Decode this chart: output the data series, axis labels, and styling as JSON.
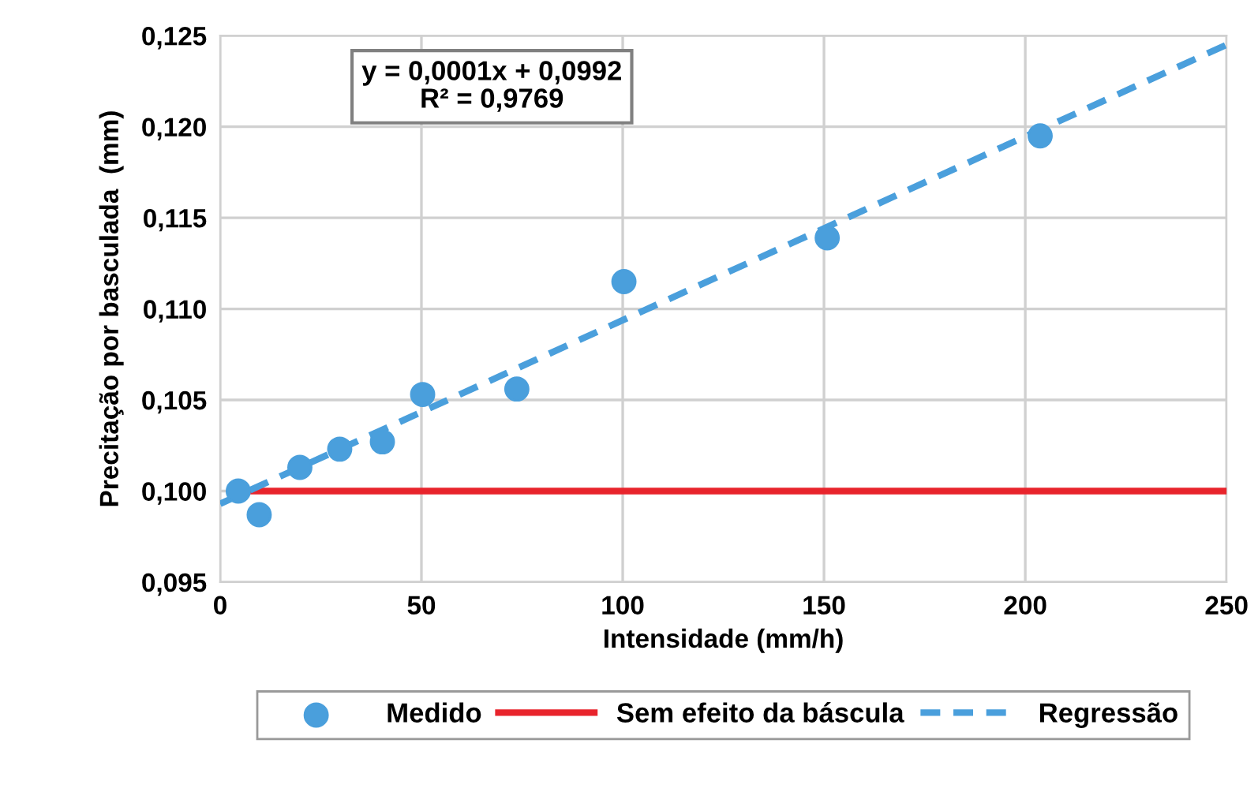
{
  "chart_data": {
    "type": "scatter",
    "xlabel": "Intensidade (mm/h)",
    "ylabel": "Precitação por basculada  (mm)",
    "annotations": [
      "y = 0,0001x + 0,0992\nR² = 0,9769"
    ],
    "series": [
      {
        "name": "Medido",
        "color": "#4a9fdc",
        "marker": "circle",
        "x": [
          4.5,
          9.7,
          19.8,
          29.7,
          40.3,
          50.3,
          73.7,
          100.3,
          150.8,
          203.7
        ],
        "values": [
          0.1,
          0.0987,
          0.1013,
          0.1023,
          0.1027,
          0.1053,
          0.1056,
          0.1115,
          0.1139,
          0.1195
        ]
      },
      {
        "name": "Sem efeito da báscula",
        "type": "line",
        "color": "#e8242c",
        "line_style": "solid",
        "x": [
          8,
          250
        ],
        "values": [
          0.1,
          0.1
        ]
      },
      {
        "name": "Regressão",
        "type": "line",
        "color": "#4a9fdc",
        "line_style": "dashed",
        "x": [
          0,
          250
        ],
        "values": [
          0.0993,
          0.1245
        ]
      }
    ],
    "xlim": [
      0,
      250
    ],
    "xticks": [
      0,
      50,
      100,
      150,
      200,
      250
    ],
    "ylim": [
      0.095,
      0.125
    ],
    "yticks": [
      {
        "value": 0.095,
        "label": "0,095"
      },
      {
        "value": 0.1,
        "label": "0,100"
      },
      {
        "value": 0.105,
        "label": "0,105"
      },
      {
        "value": 0.11,
        "label": "0,110"
      },
      {
        "value": 0.115,
        "label": "0,115"
      },
      {
        "value": 0.12,
        "label": "0,120"
      },
      {
        "value": 0.125,
        "label": "0,125"
      }
    ],
    "grid": true,
    "legend": "bottom"
  }
}
